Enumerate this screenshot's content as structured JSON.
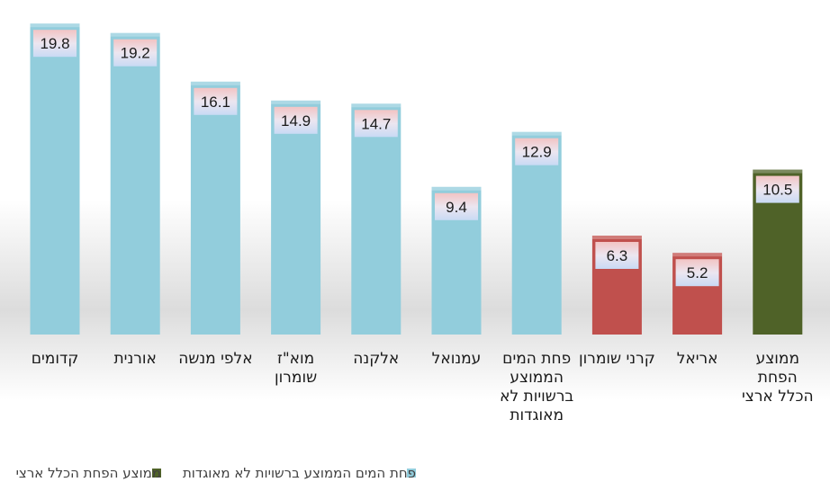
{
  "chart_data": {
    "type": "bar",
    "categories": [
      [
        "קדומים"
      ],
      [
        "אורנית"
      ],
      [
        "אלפי מנשה"
      ],
      [
        "מוא\"ז",
        "שומרון"
      ],
      [
        "אלקנה"
      ],
      [
        "עמנואל"
      ],
      [
        "פחת המים",
        "הממוצע",
        "ברשויות לא",
        "מאוגדות"
      ],
      [
        "קרני שומרון"
      ],
      [
        "אריאל"
      ],
      [
        "ממוצע",
        "הפחת",
        "הכלל ארצי"
      ]
    ],
    "values": [
      19.8,
      19.2,
      16.1,
      14.9,
      14.7,
      9.4,
      12.9,
      6.3,
      5.2,
      10.5
    ],
    "value_labels": [
      "19.8",
      "19.2",
      "16.1",
      "14.9",
      "14.7",
      "9.4",
      "12.9",
      "6.3",
      "5.2",
      "10.5"
    ],
    "bar_colors": [
      "#92cddc",
      "#92cddc",
      "#92cddc",
      "#92cddc",
      "#92cddc",
      "#92cddc",
      "#92cddc",
      "#c0504d",
      "#c0504d",
      "#4f6228"
    ],
    "ylim": [
      0,
      20.5
    ],
    "grid": false,
    "legend_position": "bottom",
    "legend": [
      {
        "name": "פחת המים הממוצע ברשויות לא מאוגדות",
        "color": "#92cddc"
      },
      {
        "name": "ממוצע הפחת הכלל ארצי",
        "color": "#4f6228"
      }
    ]
  }
}
